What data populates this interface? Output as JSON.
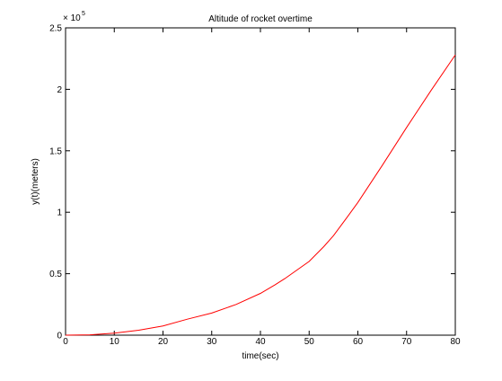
{
  "chart_data": {
    "type": "line",
    "title": "Altitude of rocket overtime",
    "xlabel": "time(sec)",
    "ylabel": "y(t)(meters)",
    "exponent_base": "× 10",
    "exponent_power": "5",
    "xlim": [
      0,
      80
    ],
    "ylim": [
      0,
      2.5
    ],
    "x_ticks": [
      0,
      10,
      20,
      30,
      40,
      50,
      60,
      70,
      80
    ],
    "x_tick_labels": [
      "0",
      "10",
      "20",
      "30",
      "40",
      "50",
      "60",
      "70",
      "80"
    ],
    "y_ticks": [
      0,
      0.5,
      1,
      1.5,
      2,
      2.5
    ],
    "y_tick_labels": [
      "0",
      "0.5",
      "1",
      "1.5",
      "2",
      "2.5"
    ],
    "grid": false,
    "legend": "none",
    "series": [
      {
        "color": "#ff0000",
        "x": [
          0,
          5,
          10,
          15,
          20,
          25,
          30,
          35,
          40,
          43,
          45,
          50,
          53,
          55,
          58,
          60,
          65,
          70,
          75,
          80
        ],
        "y": [
          0,
          0.003,
          0.016,
          0.04,
          0.075,
          0.13,
          0.18,
          0.25,
          0.34,
          0.41,
          0.46,
          0.6,
          0.72,
          0.81,
          0.97,
          1.08,
          1.38,
          1.69,
          1.99,
          2.28
        ]
      }
    ]
  }
}
